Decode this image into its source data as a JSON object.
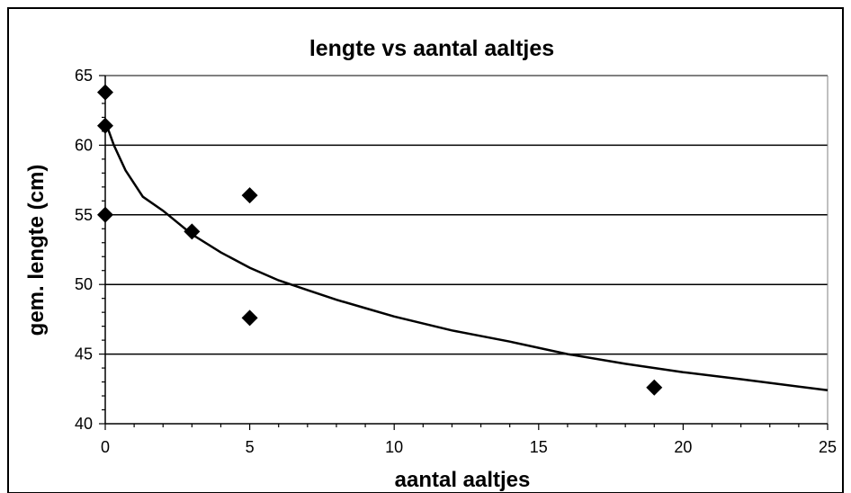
{
  "chart_data": {
    "type": "scatter",
    "title": "lengte vs aantal aaltjes",
    "xlabel": "aantal aaltjes",
    "ylabel": "gem. lengte (cm)",
    "xlim": [
      0,
      25
    ],
    "ylim": [
      40,
      65
    ],
    "x_ticks": [
      "0",
      "5",
      "10",
      "15",
      "20",
      "25"
    ],
    "y_ticks": [
      "40",
      "45",
      "50",
      "55",
      "60",
      "65"
    ],
    "grid": "horizontal",
    "legend": "none",
    "series": [
      {
        "marker": "diamond",
        "points": [
          {
            "x": 0,
            "y": 63.8
          },
          {
            "x": 0,
            "y": 61.4
          },
          {
            "x": 0,
            "y": 55.0
          },
          {
            "x": 3,
            "y": 53.8
          },
          {
            "x": 5,
            "y": 56.4
          },
          {
            "x": 5,
            "y": 47.6
          },
          {
            "x": 19,
            "y": 42.6
          }
        ]
      }
    ],
    "trendline": {
      "type": "logarithmic",
      "points": [
        {
          "x": 0.02,
          "y": 61.6
        },
        {
          "x": 0.3,
          "y": 60.0
        },
        {
          "x": 0.7,
          "y": 58.2
        },
        {
          "x": 1.3,
          "y": 56.3
        },
        {
          "x": 2,
          "y": 55.3
        },
        {
          "x": 3,
          "y": 53.6
        },
        {
          "x": 4,
          "y": 52.3
        },
        {
          "x": 5,
          "y": 51.2
        },
        {
          "x": 6,
          "y": 50.3
        },
        {
          "x": 7,
          "y": 49.6
        },
        {
          "x": 8,
          "y": 48.9
        },
        {
          "x": 9,
          "y": 48.3
        },
        {
          "x": 10,
          "y": 47.7
        },
        {
          "x": 12,
          "y": 46.7
        },
        {
          "x": 14,
          "y": 45.9
        },
        {
          "x": 16,
          "y": 45.0
        },
        {
          "x": 18,
          "y": 44.3
        },
        {
          "x": 20,
          "y": 43.7
        },
        {
          "x": 22,
          "y": 43.2
        },
        {
          "x": 25,
          "y": 42.4
        }
      ]
    }
  },
  "colors": {
    "background": "#ffffff",
    "marker": "#000000",
    "line": "#000000",
    "grid": "#000000"
  }
}
